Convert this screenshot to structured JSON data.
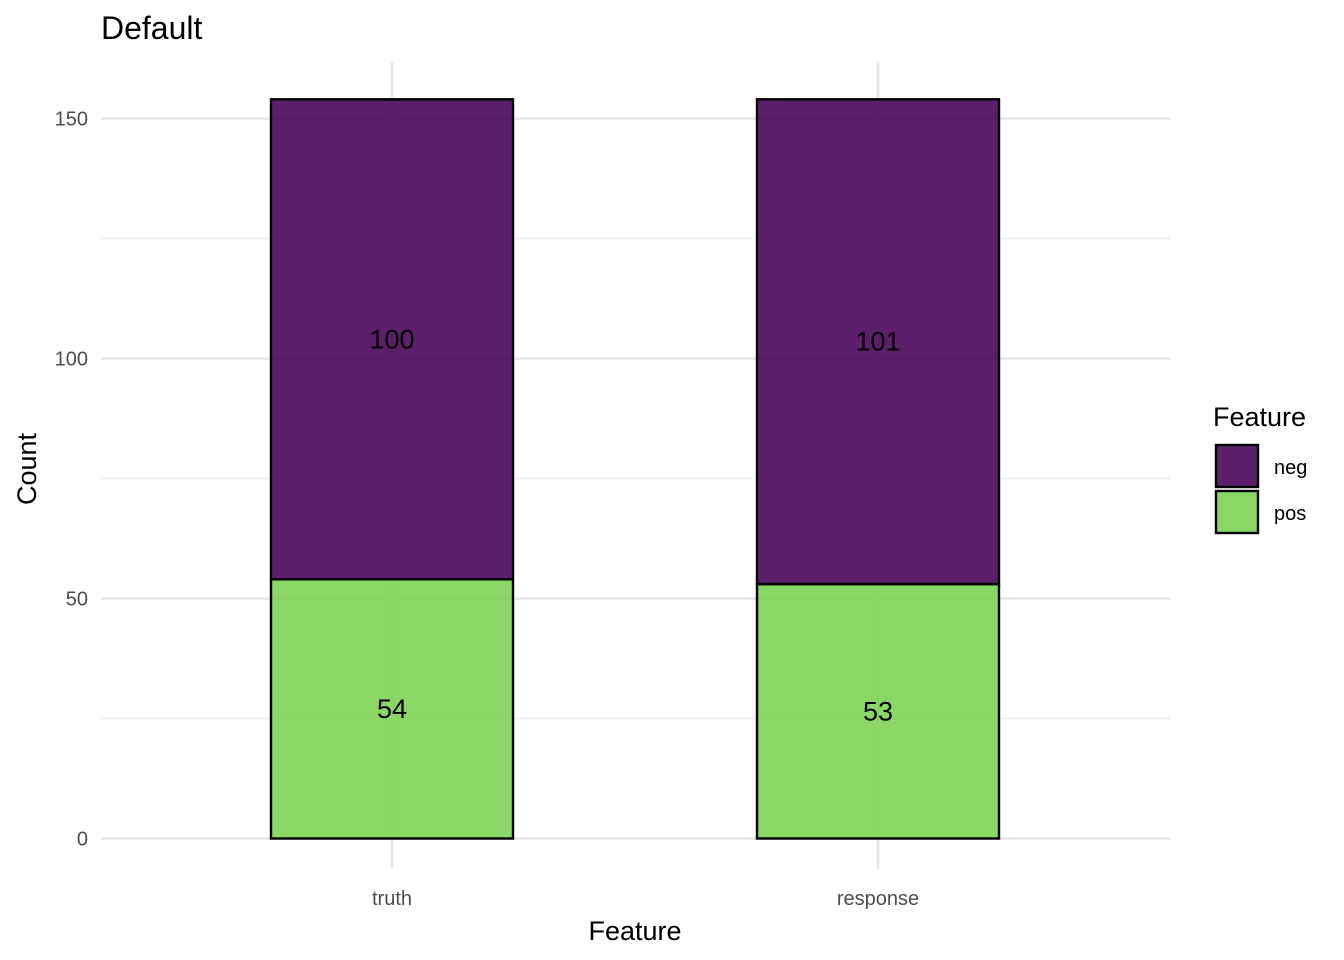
{
  "chart_data": {
    "type": "bar",
    "stacked": true,
    "title": "Default",
    "xlabel": "Feature",
    "ylabel": "Count",
    "categories": [
      "truth",
      "response"
    ],
    "series": [
      {
        "name": "pos",
        "values": [
          54,
          53
        ],
        "color": "#7ad151"
      },
      {
        "name": "neg",
        "values": [
          100,
          101
        ],
        "color": "#440154"
      }
    ],
    "ylim": [
      0,
      160
    ],
    "yticks": [
      0,
      50,
      100,
      150
    ],
    "grid": true,
    "legend": {
      "title": "Feature",
      "position": "right",
      "entries": [
        {
          "label": "neg",
          "color": "#440154"
        },
        {
          "label": "pos",
          "color": "#7ad151"
        }
      ]
    }
  }
}
